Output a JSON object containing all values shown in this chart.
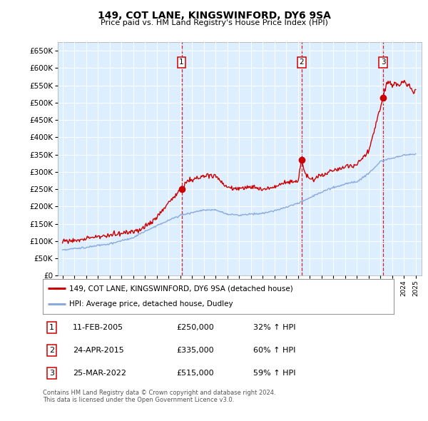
{
  "title": "149, COT LANE, KINGSWINFORD, DY6 9SA",
  "subtitle": "Price paid vs. HM Land Registry's House Price Index (HPI)",
  "bg_color": "#ddeeff",
  "ylim": [
    0,
    675000
  ],
  "yticks": [
    0,
    50000,
    100000,
    150000,
    200000,
    250000,
    300000,
    350000,
    400000,
    450000,
    500000,
    550000,
    600000,
    650000
  ],
  "sales": [
    {
      "date_yr": 2005.117,
      "price": 250000,
      "label": "1"
    },
    {
      "date_yr": 2015.315,
      "price": 335000,
      "label": "2"
    },
    {
      "date_yr": 2022.23,
      "price": 515000,
      "label": "3"
    }
  ],
  "table_rows": [
    {
      "num": "1",
      "date": "11-FEB-2005",
      "price": "£250,000",
      "change": "32% ↑ HPI"
    },
    {
      "num": "2",
      "date": "24-APR-2015",
      "price": "£335,000",
      "change": "60% ↑ HPI"
    },
    {
      "num": "3",
      "date": "25-MAR-2022",
      "price": "£515,000",
      "change": "59% ↑ HPI"
    }
  ],
  "legend_entries": [
    {
      "label": "149, COT LANE, KINGSWINFORD, DY6 9SA (detached house)",
      "color": "#cc0000"
    },
    {
      "label": "HPI: Average price, detached house, Dudley",
      "color": "#88aadd"
    }
  ],
  "footer": "Contains HM Land Registry data © Crown copyright and database right 2024.\nThis data is licensed under the Open Government Licence v3.0.",
  "vline_color": "#cc0000",
  "hpi_line_color": "#88aadd",
  "price_line_color": "#cc0000"
}
